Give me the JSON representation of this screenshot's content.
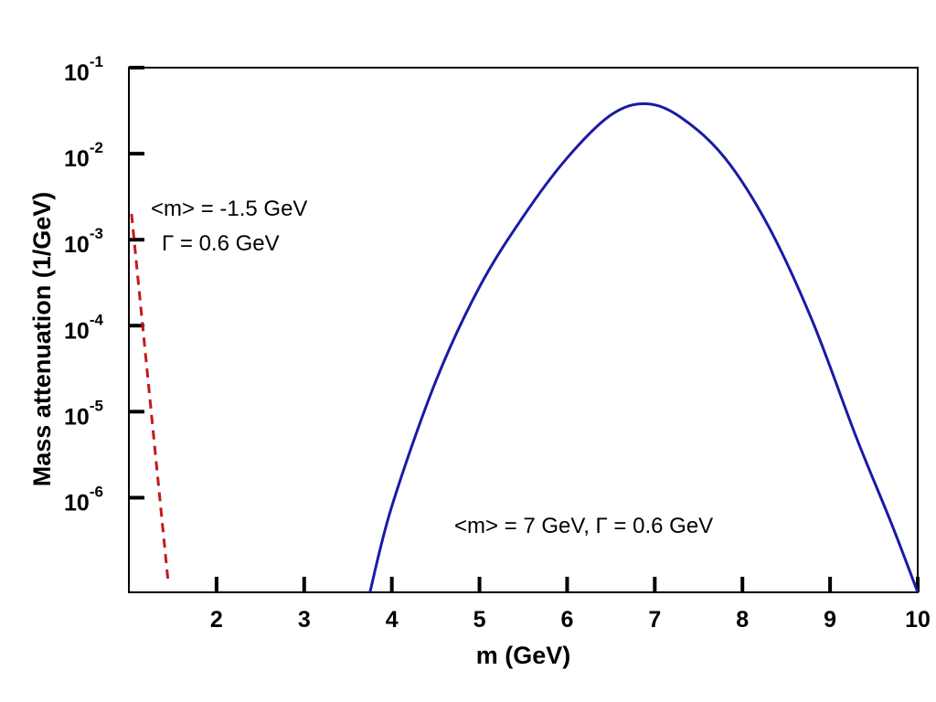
{
  "chart_data": {
    "type": "line",
    "xlabel": "m (GeV)",
    "ylabel": "Mass attenuation (1/GeV)",
    "xlim": [
      1,
      10
    ],
    "ylim_log10": [
      -7.1,
      -1
    ],
    "y_scale": "log",
    "x_ticks": [
      2,
      3,
      4,
      5,
      6,
      7,
      8,
      9,
      10
    ],
    "y_ticks": [
      {
        "base": "10",
        "exp": "-1"
      },
      {
        "base": "10",
        "exp": "-2"
      },
      {
        "base": "10",
        "exp": "-3"
      },
      {
        "base": "10",
        "exp": "-4"
      },
      {
        "base": "10",
        "exp": "-5"
      },
      {
        "base": "10",
        "exp": "-6"
      }
    ],
    "series": [
      {
        "name": "<m> = 7 GeV, Γ = 0.6 GeV",
        "color": "#1a1aa6",
        "style": "solid",
        "x": [
          3.75,
          4.0,
          4.5,
          5.0,
          5.5,
          6.0,
          6.5,
          6.9,
          7.3,
          7.8,
          8.3,
          8.8,
          9.3,
          9.7,
          10.0
        ],
        "log10y": [
          -7.1,
          -6.1,
          -4.65,
          -3.55,
          -2.73,
          -2.05,
          -1.55,
          -1.42,
          -1.58,
          -2.05,
          -2.85,
          -3.95,
          -5.3,
          -6.3,
          -7.1
        ]
      },
      {
        "name": "<m> = -1.5 GeV, Γ = 0.6 GeV",
        "color": "#c41a1a",
        "style": "dashed",
        "x": [
          1.03,
          1.45
        ],
        "log10y": [
          -2.7,
          -7.0
        ]
      }
    ],
    "annotations": [
      {
        "text": "<m> = -1.5 GeV",
        "series": 1
      },
      {
        "text": "Γ = 0.6 GeV",
        "series": 1
      },
      {
        "text": "<m> = 7 GeV, Γ = 0.6 GeV",
        "series": 0
      }
    ]
  }
}
